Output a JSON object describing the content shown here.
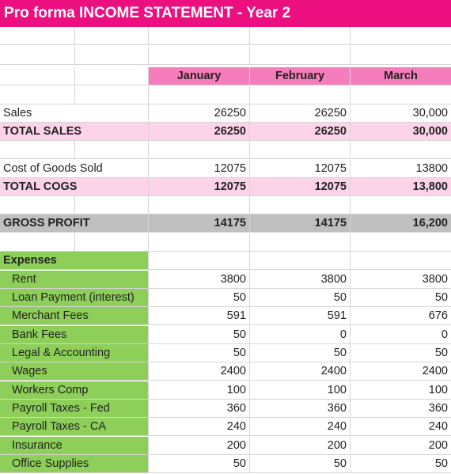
{
  "title": "Pro forma INCOME STATEMENT - Year 2",
  "months": [
    "January",
    "February",
    "March"
  ],
  "sales": {
    "label": "Sales",
    "values": [
      "26250",
      "26250",
      "30,000"
    ]
  },
  "total_sales": {
    "label": "TOTAL SALES",
    "values": [
      "26250",
      "26250",
      "30,000"
    ]
  },
  "cogs": {
    "label": "Cost of Goods Sold",
    "values": [
      "12075",
      "12075",
      "13800"
    ]
  },
  "total_cogs": {
    "label": "TOTAL COGS",
    "values": [
      "12075",
      "12075",
      "13,800"
    ]
  },
  "gross_profit": {
    "label": "GROSS PROFIT",
    "values": [
      "14175",
      "14175",
      "16,200"
    ]
  },
  "expenses_label": "Expenses",
  "expenses": [
    {
      "label": "Rent",
      "values": [
        "3800",
        "3800",
        "3800"
      ]
    },
    {
      "label": "Loan Payment (interest)",
      "values": [
        "50",
        "50",
        "50"
      ]
    },
    {
      "label": "Merchant Fees",
      "values": [
        "591",
        "591",
        "676"
      ]
    },
    {
      "label": "Bank Fees",
      "values": [
        "50",
        "0",
        "0"
      ]
    },
    {
      "label": "Legal & Accounting",
      "values": [
        "50",
        "50",
        "50"
      ]
    },
    {
      "label": "Wages",
      "values": [
        "2400",
        "2400",
        "2400"
      ]
    },
    {
      "label": "Workers Comp",
      "values": [
        "100",
        "100",
        "100"
      ]
    },
    {
      "label": "Payroll Taxes - Fed",
      "values": [
        "360",
        "360",
        "360"
      ]
    },
    {
      "label": "Payroll Taxes - CA",
      "values": [
        "240",
        "240",
        "240"
      ]
    },
    {
      "label": "Insurance",
      "values": [
        "200",
        "200",
        "200"
      ]
    },
    {
      "label": "Office Supplies",
      "values": [
        "50",
        "50",
        "50"
      ]
    }
  ],
  "colors": {
    "title_bg": "#ec0f80",
    "month_header_bg": "#f57dbb",
    "total_row_bg": "#fcd3e8",
    "gross_profit_bg": "#bfbfbf",
    "expenses_bg": "#8dcf58"
  }
}
